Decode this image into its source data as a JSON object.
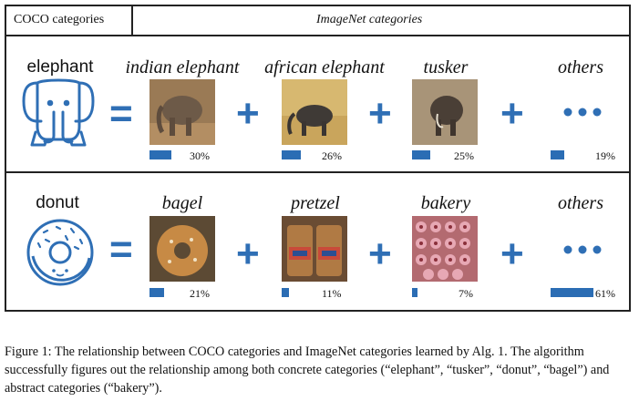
{
  "header": {
    "left": "COCO categories",
    "right": "ImageNet categories"
  },
  "rows": [
    {
      "name": "elephant",
      "icon": "elephant-icon",
      "items": [
        {
          "label": "indian elephant",
          "percent": 30,
          "percent_text": "30%",
          "image": "indian-elephant-photo"
        },
        {
          "label": "african elephant",
          "percent": 26,
          "percent_text": "26%",
          "image": "african-elephant-photo"
        },
        {
          "label": "tusker",
          "percent": 25,
          "percent_text": "25%",
          "image": "tusker-photo"
        },
        {
          "label": "others",
          "percent": 19,
          "percent_text": "19%",
          "image": "ellipsis-icon"
        }
      ]
    },
    {
      "name": "donut",
      "icon": "donut-icon",
      "items": [
        {
          "label": "bagel",
          "percent": 21,
          "percent_text": "21%",
          "image": "bagel-photo"
        },
        {
          "label": "pretzel",
          "percent": 11,
          "percent_text": "11%",
          "image": "pretzel-photo"
        },
        {
          "label": "bakery",
          "percent": 7,
          "percent_text": "7%",
          "image": "bakery-photo"
        },
        {
          "label": "others",
          "percent": 61,
          "percent_text": "61%",
          "image": "ellipsis-icon"
        }
      ]
    }
  ],
  "symbols": {
    "equals": "=",
    "plus": "+"
  },
  "caption": "Figure 1: The relationship between COCO categories and ImageNet categories learned by Alg. 1. The algorithm successfully figures out the relationship among both concrete categories (“elephant”, “tusker”, “donut”, “bagel”) and abstract categories (“bakery”).",
  "colors": {
    "accent": "#2f6fb5",
    "bar": "#2b6db4",
    "border": "#222222"
  }
}
